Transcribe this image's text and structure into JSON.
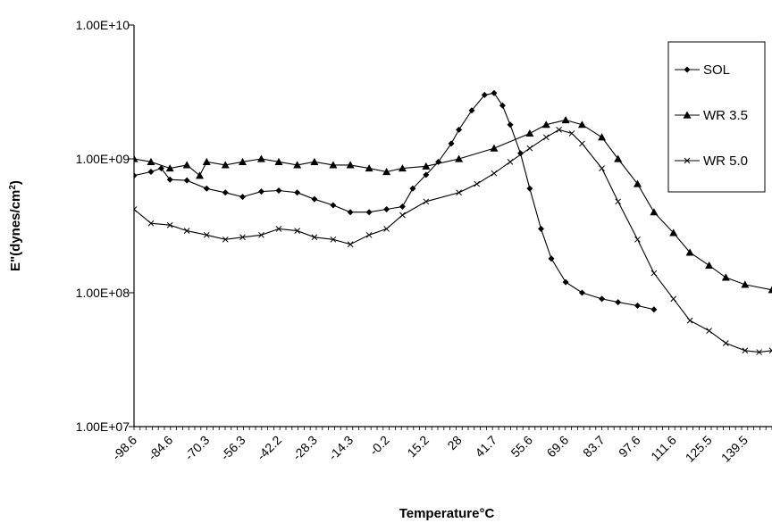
{
  "chart_data": {
    "type": "line",
    "xlabel": "Temperature°C",
    "ylabel": "E\"(dynes/cm",
    "ylabel_sup": "2",
    "ylabel_close": ")",
    "y_scale": "log",
    "ylim": [
      10000000,
      10000000000
    ],
    "y_ticks": [
      10000000,
      100000000,
      1000000000,
      10000000000
    ],
    "y_tick_labels": [
      "1.00E+07",
      "1.00E+08",
      "1.00E+09",
      "1.00E+10"
    ],
    "x_tick_labels": [
      "-98.6",
      "-84.6",
      "-70.3",
      "-56.3",
      "-42.2",
      "-28.3",
      "-14.3",
      "-0.2",
      "15.2",
      "28",
      "41.7",
      "55.6",
      "69.6",
      "83.7",
      "97.6",
      "111.6",
      "125.5",
      "139.5"
    ],
    "xlim": [
      -98.6,
      150
    ],
    "grid": false,
    "legend_position": "right",
    "series": [
      {
        "name": "SOL",
        "marker": "diamond",
        "points": [
          [
            -98.6,
            750000000
          ],
          [
            -92,
            800000000
          ],
          [
            -88,
            850000000
          ],
          [
            -84.6,
            700000000
          ],
          [
            -78,
            690000000
          ],
          [
            -70.3,
            600000000
          ],
          [
            -63,
            560000000
          ],
          [
            -56.3,
            520000000
          ],
          [
            -49,
            570000000
          ],
          [
            -42.2,
            580000000
          ],
          [
            -35,
            560000000
          ],
          [
            -28.3,
            500000000
          ],
          [
            -21,
            450000000
          ],
          [
            -14.3,
            400000000
          ],
          [
            -7,
            400000000
          ],
          [
            -0.2,
            420000000
          ],
          [
            6,
            440000000
          ],
          [
            10,
            600000000
          ],
          [
            15.2,
            760000000
          ],
          [
            20,
            950000000
          ],
          [
            25,
            1300000000
          ],
          [
            28,
            1650000000
          ],
          [
            33,
            2300000000
          ],
          [
            38,
            3000000000
          ],
          [
            41.7,
            3100000000
          ],
          [
            45,
            2500000000
          ],
          [
            48,
            1800000000
          ],
          [
            52,
            1100000000
          ],
          [
            55.6,
            600000000
          ],
          [
            60,
            300000000
          ],
          [
            64,
            180000000
          ],
          [
            69.6,
            120000000
          ],
          [
            76,
            100000000
          ],
          [
            83.7,
            90000000
          ],
          [
            90,
            85000000
          ],
          [
            97.6,
            80000000
          ],
          [
            104,
            75000000
          ]
        ]
      },
      {
        "name": "WR 3.5",
        "marker": "triangle",
        "points": [
          [
            -98.6,
            1000000000
          ],
          [
            -92,
            950000000
          ],
          [
            -84.6,
            850000000
          ],
          [
            -78,
            900000000
          ],
          [
            -73,
            750000000
          ],
          [
            -70.3,
            950000000
          ],
          [
            -63,
            900000000
          ],
          [
            -56.3,
            950000000
          ],
          [
            -49,
            1000000000
          ],
          [
            -42.2,
            950000000
          ],
          [
            -35,
            900000000
          ],
          [
            -28.3,
            950000000
          ],
          [
            -21,
            900000000
          ],
          [
            -14.3,
            900000000
          ],
          [
            -7,
            850000000
          ],
          [
            -0.2,
            800000000
          ],
          [
            6,
            850000000
          ],
          [
            15.2,
            880000000
          ],
          [
            28,
            1000000000
          ],
          [
            41.7,
            1200000000
          ],
          [
            55.6,
            1550000000
          ],
          [
            62,
            1800000000
          ],
          [
            69.6,
            1950000000
          ],
          [
            76,
            1800000000
          ],
          [
            83.7,
            1450000000
          ],
          [
            90,
            1000000000
          ],
          [
            97.6,
            650000000
          ],
          [
            104,
            400000000
          ],
          [
            111.6,
            280000000
          ],
          [
            118,
            200000000
          ],
          [
            125.5,
            160000000
          ],
          [
            132,
            130000000
          ],
          [
            139.5,
            115000000
          ],
          [
            150,
            105000000
          ]
        ]
      },
      {
        "name": "WR 5.0",
        "marker": "x",
        "points": [
          [
            -98.6,
            420000000
          ],
          [
            -92,
            330000000
          ],
          [
            -84.6,
            320000000
          ],
          [
            -78,
            290000000
          ],
          [
            -70.3,
            270000000
          ],
          [
            -63,
            250000000
          ],
          [
            -56.3,
            260000000
          ],
          [
            -49,
            270000000
          ],
          [
            -42.2,
            300000000
          ],
          [
            -35,
            290000000
          ],
          [
            -28.3,
            260000000
          ],
          [
            -21,
            250000000
          ],
          [
            -14.3,
            230000000
          ],
          [
            -7,
            270000000
          ],
          [
            -0.2,
            300000000
          ],
          [
            6,
            380000000
          ],
          [
            15.2,
            480000000
          ],
          [
            28,
            560000000
          ],
          [
            35,
            650000000
          ],
          [
            41.7,
            780000000
          ],
          [
            48,
            950000000
          ],
          [
            55.6,
            1200000000
          ],
          [
            62,
            1450000000
          ],
          [
            67,
            1650000000
          ],
          [
            72,
            1550000000
          ],
          [
            76,
            1300000000
          ],
          [
            83.7,
            850000000
          ],
          [
            90,
            480000000
          ],
          [
            97.6,
            250000000
          ],
          [
            104,
            140000000
          ],
          [
            111.6,
            90000000
          ],
          [
            118,
            62000000
          ],
          [
            125.5,
            52000000
          ],
          [
            132,
            42000000
          ],
          [
            139.5,
            37000000
          ],
          [
            145,
            36000000
          ],
          [
            150,
            37000000
          ]
        ]
      }
    ]
  }
}
